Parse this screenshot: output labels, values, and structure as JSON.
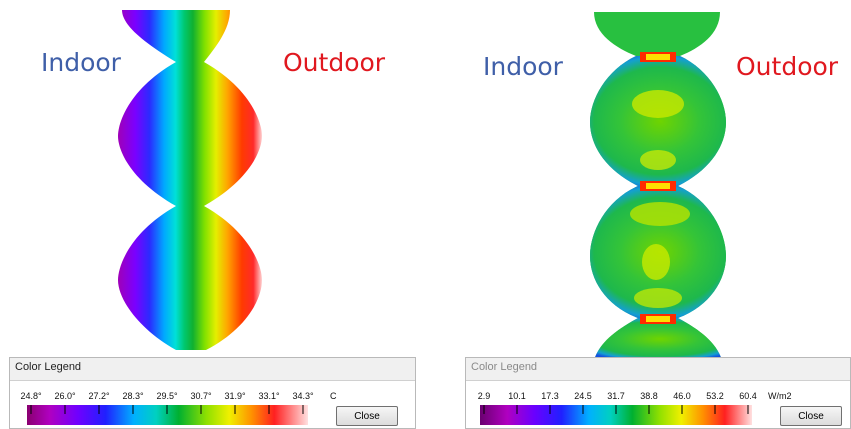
{
  "left_panel": {
    "indoor_label": "Indoor",
    "outdoor_label": "Outdoor",
    "legend": {
      "title": "Color Legend",
      "ticks": [
        "24.8°",
        "26.0°",
        "27.2°",
        "28.3°",
        "29.5°",
        "30.7°",
        "31.9°",
        "33.1°",
        "34.3°"
      ],
      "unit": "C",
      "close_label": "Close"
    }
  },
  "right_panel": {
    "indoor_label": "Indoor",
    "outdoor_label": "Outdoor",
    "legend": {
      "title": "Color Legend",
      "ticks": [
        "2.9",
        "10.1",
        "17.3",
        "24.5",
        "31.7",
        "38.8",
        "46.0",
        "53.2",
        "60.4"
      ],
      "unit": "W/m2",
      "close_label": "Close"
    }
  },
  "colors": {
    "indoor_text": "#3f5fa8",
    "outdoor_text": "#e0181f",
    "legend_background": "#f0f0f0"
  }
}
